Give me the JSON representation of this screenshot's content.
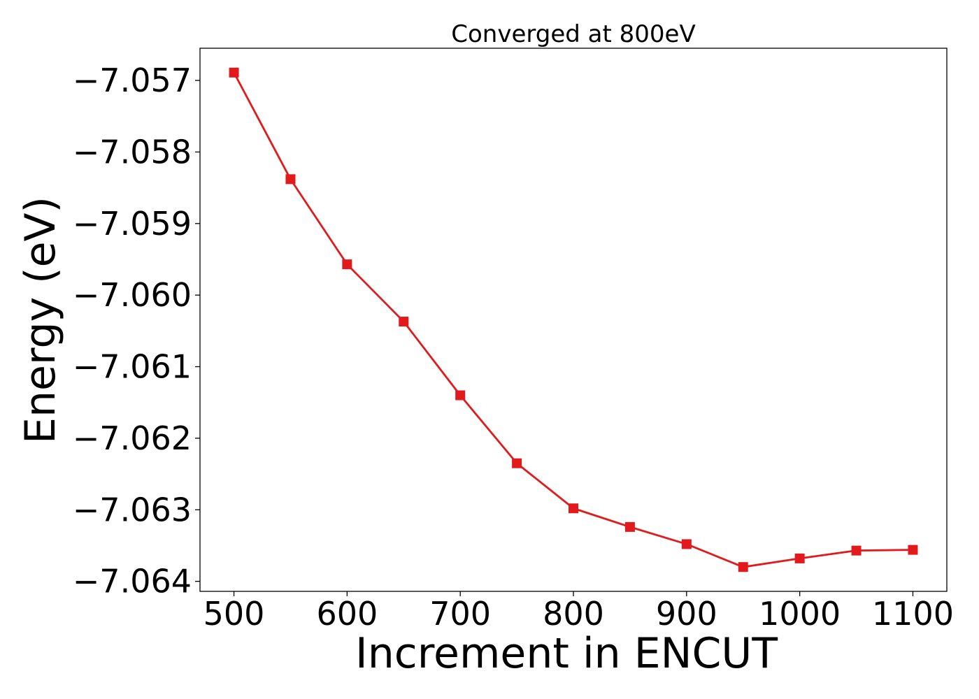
{
  "chart_data": {
    "type": "line",
    "title": "Converged at 800eV",
    "xlabel": "Increment in ENCUT",
    "ylabel": "Energy (eV)",
    "xlim": [
      470,
      1130
    ],
    "ylim": [
      -7.06414,
      -7.05655
    ],
    "xticks": [
      500,
      600,
      700,
      800,
      900,
      1000,
      1100
    ],
    "yticks": [
      -7.057,
      -7.058,
      -7.059,
      -7.06,
      -7.061,
      -7.062,
      -7.063,
      -7.064
    ],
    "ytick_labels": [
      "−7.057",
      "−7.058",
      "−7.059",
      "−7.060",
      "−7.061",
      "−7.062",
      "−7.063",
      "−7.064"
    ],
    "grid": false,
    "series": [
      {
        "color": "#e31a1c",
        "marker": "square",
        "x": [
          500,
          550,
          600,
          650,
          700,
          750,
          800,
          850,
          900,
          950,
          1000,
          1050,
          1100
        ],
        "y": [
          -7.05689,
          -7.05838,
          -7.05957,
          -7.06037,
          -7.0614,
          -7.06235,
          -7.06298,
          -7.06324,
          -7.06348,
          -7.0638,
          -7.06368,
          -7.06357,
          -7.06356
        ]
      }
    ]
  }
}
